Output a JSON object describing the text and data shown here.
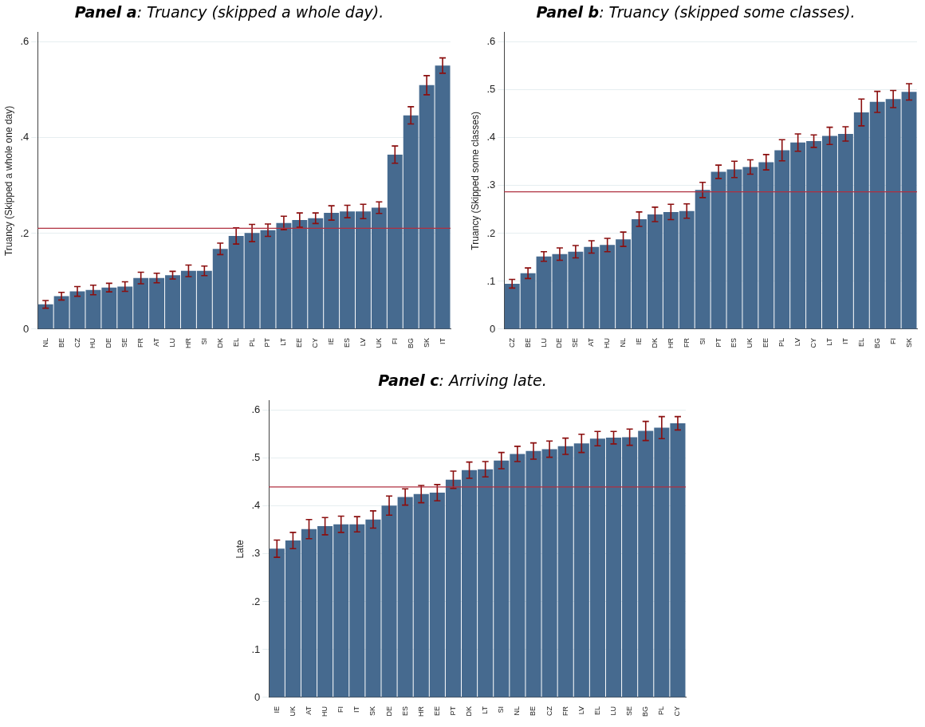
{
  "chart_data": [
    {
      "type": "bar",
      "title": "Panel a: Truancy (skipped a whole day).",
      "ylabel": "Truancy (Skipped a whole one day)",
      "categories": [
        "NL",
        "BE",
        "CZ",
        "HU",
        "DE",
        "SE",
        "FR",
        "AT",
        "LU",
        "HR",
        "SI",
        "DK",
        "EL",
        "PL",
        "PT",
        "LT",
        "EE",
        "CY",
        "IE",
        "ES",
        "LV",
        "UK",
        "FI",
        "BG",
        "SK",
        "IT"
      ],
      "values": [
        0.052,
        0.069,
        0.079,
        0.082,
        0.087,
        0.089,
        0.107,
        0.107,
        0.113,
        0.122,
        0.122,
        0.168,
        0.195,
        0.201,
        0.207,
        0.222,
        0.228,
        0.232,
        0.243,
        0.246,
        0.246,
        0.254,
        0.365,
        0.447,
        0.51,
        0.551
      ],
      "errors": [
        0.008,
        0.008,
        0.01,
        0.01,
        0.009,
        0.01,
        0.012,
        0.01,
        0.008,
        0.012,
        0.01,
        0.012,
        0.017,
        0.018,
        0.013,
        0.014,
        0.015,
        0.011,
        0.015,
        0.013,
        0.015,
        0.012,
        0.018,
        0.018,
        0.02,
        0.016
      ],
      "color": "#466a8f",
      "ylim": [
        0,
        0.62
      ],
      "yticks": [
        {
          "value": 0,
          "label": "0"
        },
        {
          "value": 0.2,
          "label": ".2"
        },
        {
          "value": 0.4,
          "label": ".4"
        },
        {
          "value": 0.6,
          "label": ".6"
        }
      ],
      "ref_lines": [
        {
          "axis": "y",
          "value": 0.211,
          "color": "#b03040"
        }
      ],
      "grid": "y",
      "legend": false
    },
    {
      "type": "bar",
      "title": "Panel b: Truancy (skipped some classes).",
      "ylabel": "Truancy (Skipped some classes)",
      "categories": [
        "CZ",
        "BE",
        "LU",
        "DE",
        "SE",
        "AT",
        "HU",
        "NL",
        "IE",
        "DK",
        "HR",
        "FR",
        "SI",
        "PT",
        "ES",
        "UK",
        "EE",
        "PL",
        "LV",
        "CY",
        "LT",
        "IT",
        "EL",
        "BG",
        "FI",
        "SK"
      ],
      "values": [
        0.095,
        0.117,
        0.152,
        0.157,
        0.162,
        0.172,
        0.176,
        0.188,
        0.23,
        0.24,
        0.245,
        0.247,
        0.291,
        0.329,
        0.334,
        0.339,
        0.349,
        0.374,
        0.39,
        0.393,
        0.404,
        0.408,
        0.453,
        0.475,
        0.481,
        0.496
      ],
      "errors": [
        0.009,
        0.011,
        0.01,
        0.013,
        0.013,
        0.013,
        0.014,
        0.015,
        0.015,
        0.015,
        0.016,
        0.015,
        0.016,
        0.014,
        0.017,
        0.015,
        0.016,
        0.022,
        0.018,
        0.013,
        0.018,
        0.015,
        0.028,
        0.022,
        0.018,
        0.017
      ],
      "color": "#466a8f",
      "ylim": [
        0,
        0.62
      ],
      "yticks": [
        {
          "value": 0,
          "label": "0"
        },
        {
          "value": 0.1,
          "label": ".1"
        },
        {
          "value": 0.2,
          "label": ".2"
        },
        {
          "value": 0.3,
          "label": ".3"
        },
        {
          "value": 0.4,
          "label": ".4"
        },
        {
          "value": 0.5,
          "label": ".5"
        },
        {
          "value": 0.6,
          "label": ".6"
        }
      ],
      "ref_lines": [
        {
          "axis": "y",
          "value": 0.287,
          "color": "#b03040"
        }
      ],
      "grid": "y",
      "legend": false
    },
    {
      "type": "bar",
      "title": "Panel c: Arriving late.",
      "ylabel": "Late",
      "categories": [
        "IE",
        "UK",
        "AT",
        "HU",
        "FI",
        "IT",
        "SK",
        "DE",
        "ES",
        "HR",
        "EE",
        "PT",
        "DK",
        "LT",
        "SI",
        "NL",
        "BE",
        "CZ",
        "FR",
        "LV",
        "EL",
        "LU",
        "SE",
        "BG",
        "PL",
        "CY"
      ],
      "values": [
        0.311,
        0.328,
        0.352,
        0.358,
        0.362,
        0.362,
        0.372,
        0.401,
        0.419,
        0.425,
        0.428,
        0.455,
        0.475,
        0.477,
        0.495,
        0.509,
        0.515,
        0.519,
        0.525,
        0.531,
        0.541,
        0.543,
        0.544,
        0.557,
        0.564,
        0.573
      ],
      "errors": [
        0.018,
        0.017,
        0.02,
        0.018,
        0.017,
        0.016,
        0.018,
        0.02,
        0.017,
        0.018,
        0.017,
        0.018,
        0.017,
        0.016,
        0.017,
        0.016,
        0.017,
        0.017,
        0.017,
        0.019,
        0.015,
        0.013,
        0.017,
        0.02,
        0.023,
        0.014
      ],
      "color": "#466a8f",
      "ylim": [
        0,
        0.62
      ],
      "yticks": [
        {
          "value": 0,
          "label": "0"
        },
        {
          "value": 0.1,
          "label": ".1"
        },
        {
          "value": 0.2,
          "label": ".2"
        },
        {
          "value": 0.3,
          "label": ".3"
        },
        {
          "value": 0.4,
          "label": ".4"
        },
        {
          "value": 0.5,
          "label": ".5"
        },
        {
          "value": 0.6,
          "label": ".6"
        }
      ],
      "ref_lines": [
        {
          "axis": "y",
          "value": 0.44,
          "color": "#b03040"
        }
      ],
      "grid": "y",
      "legend": false
    }
  ]
}
